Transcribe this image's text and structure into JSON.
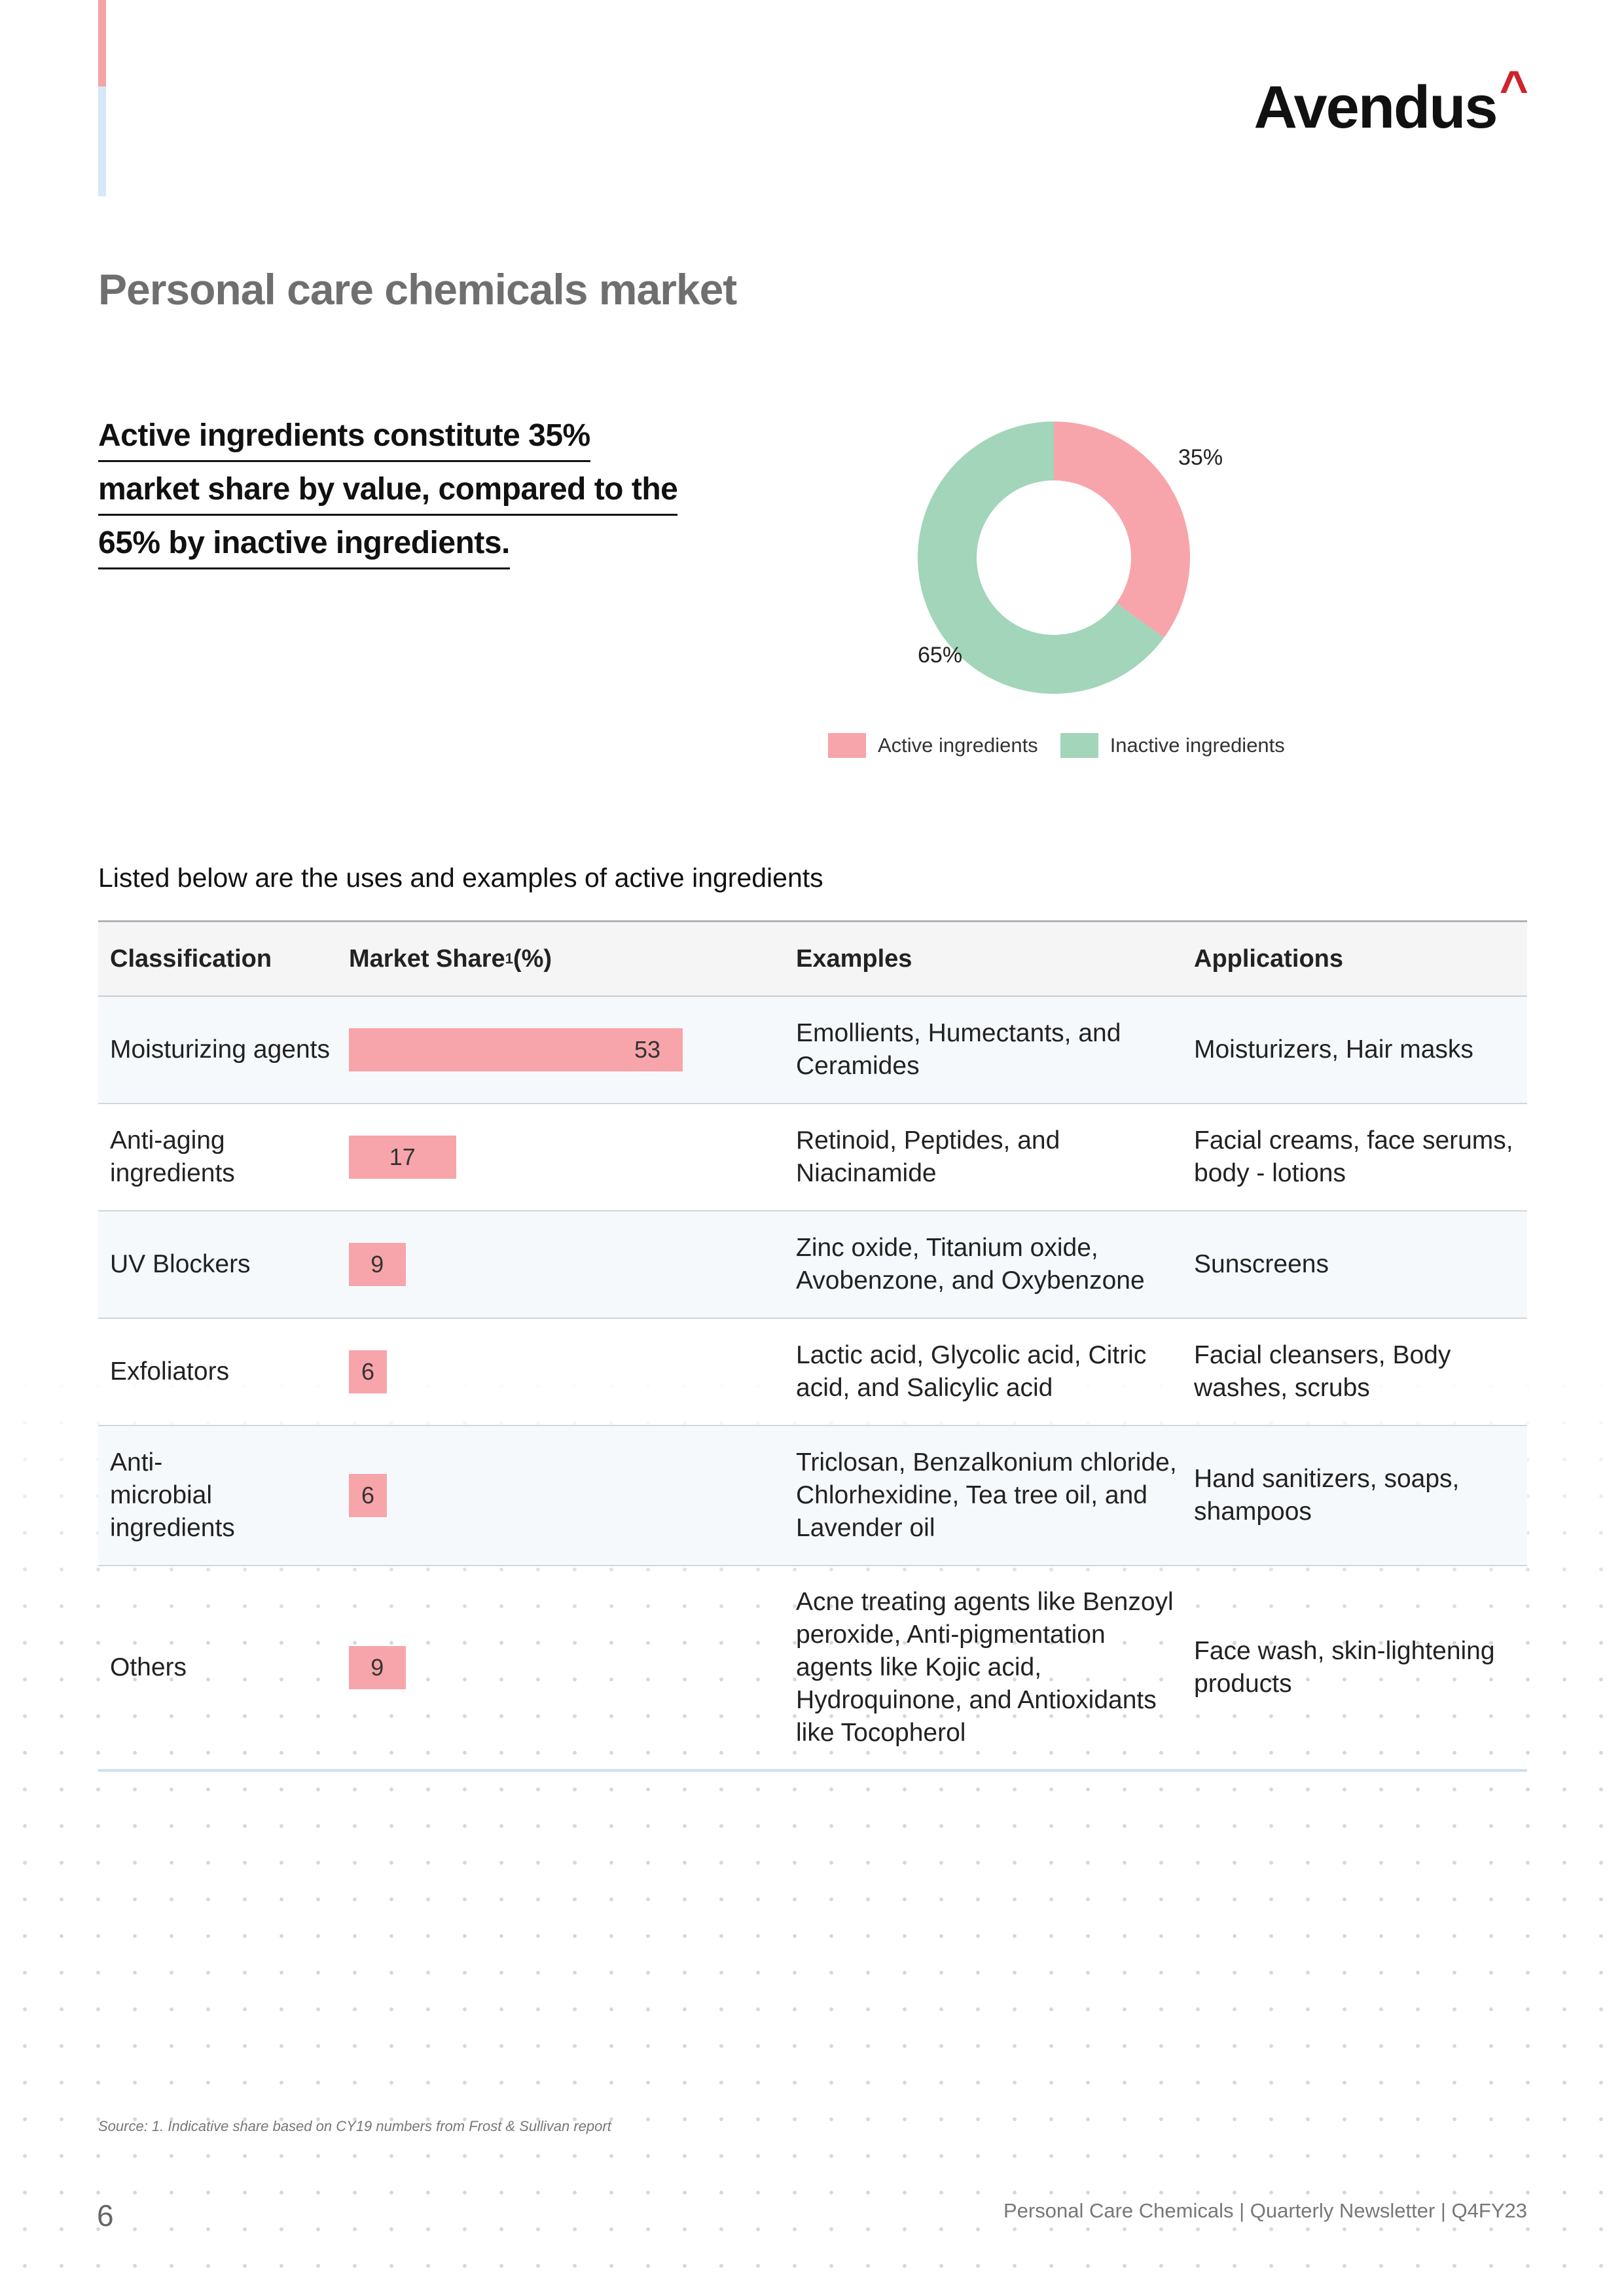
{
  "brand": {
    "name": "Avendus",
    "caret": "^"
  },
  "page_title": "Personal care chemicals market",
  "highlight_lines": [
    "Active ingredients constitute 35%",
    "market share by value, compared to the",
    "65% by inactive ingredients."
  ],
  "chart_data": {
    "type": "pie",
    "style": "donut",
    "categories": [
      "Active ingredients",
      "Inactive ingredients"
    ],
    "values": [
      35,
      65
    ],
    "labels": [
      "35%",
      "65%"
    ],
    "colors": [
      "#f7a5aa",
      "#a2d5b9"
    ],
    "legend": "bottom"
  },
  "table_caption": "Listed below are the uses and examples of active ingredients",
  "table": {
    "headers": {
      "classification": "Classification",
      "market_share": "Market Share",
      "market_share_sup": "1",
      "market_share_unit": " (%)",
      "examples": "Examples",
      "applications": "Applications"
    },
    "bar_max": 53,
    "rows": [
      {
        "classification": "Moisturizing agents",
        "share": 53,
        "share_label": "53",
        "examples": "Emollients, Humectants, and Ceramides",
        "applications": "Moisturizers, Hair masks"
      },
      {
        "classification": "Anti-aging ingredients",
        "share": 17,
        "share_label": "17",
        "examples": "Retinoid, Peptides, and Niacinamide",
        "applications": "Facial creams, face serums, body - lotions"
      },
      {
        "classification": "UV Blockers",
        "share": 9,
        "share_label": "9",
        "examples": "Zinc oxide, Titanium oxide, Avobenzone, and Oxybenzone",
        "applications": "Sunscreens"
      },
      {
        "classification": "Exfoliators",
        "share": 6,
        "share_label": "6",
        "examples": "Lactic acid, Glycolic acid, Citric acid, and Salicylic acid",
        "applications": "Facial cleansers, Body washes, scrubs"
      },
      {
        "classification": "Anti-microbial ingredients",
        "share": 6,
        "share_label": "6",
        "examples": "Triclosan, Benzalkonium chloride, Chlorhexidine, Tea tree oil, and Lavender oil",
        "applications": "Hand sanitizers, soaps, shampoos"
      },
      {
        "classification": "Others",
        "share": 9,
        "share_label": "9",
        "examples": "Acne treating agents like Benzoyl peroxide, Anti-pigmentation agents like Kojic acid, Hydroquinone, and Antioxidants like Tocopherol",
        "applications": "Face wash, skin-lightening products"
      }
    ]
  },
  "source_note": "Source: 1. Indicative share based on CY19 numbers from Frost & Sullivan report",
  "page_number": "6",
  "footer": "Personal Care Chemicals | Quarterly Newsletter | Q4FY23"
}
